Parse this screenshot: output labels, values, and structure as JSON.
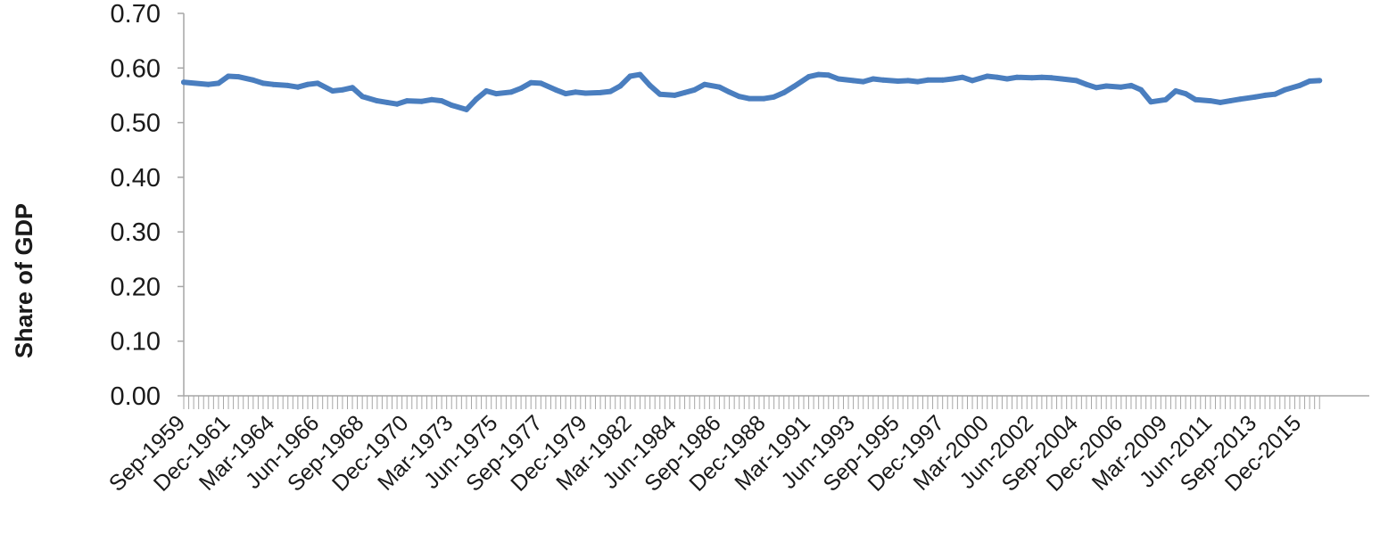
{
  "chart_data": {
    "type": "line",
    "title": "",
    "xlabel": "",
    "ylabel": "Share of GDP",
    "ylim": [
      0,
      0.7
    ],
    "yticks": [
      "0.00",
      "0.10",
      "0.20",
      "0.30",
      "0.40",
      "0.50",
      "0.60",
      "0.70"
    ],
    "xtick_labels": [
      "Sep-1959",
      "Dec-1961",
      "Mar-1964",
      "Jun-1966",
      "Sep-1968",
      "Dec-1970",
      "Mar-1973",
      "Jun-1975",
      "Sep-1977",
      "Dec-1979",
      "Mar-1982",
      "Jun-1984",
      "Sep-1986",
      "Dec-1988",
      "Mar-1991",
      "Jun-1993",
      "Sep-1995",
      "Dec-1997",
      "Mar-2000",
      "Jun-2002",
      "Sep-2004",
      "Dec-2006",
      "Mar-2009",
      "Jun-2011",
      "Sep-2013",
      "Dec-2015"
    ],
    "grid": false,
    "legend": "none",
    "series_color": "#4a7ebf",
    "x": [
      "Sep-1959",
      "Dec-1960",
      "Jun-1961",
      "Dec-1961",
      "Jun-1962",
      "Mar-1963",
      "Sep-1963",
      "Mar-1964",
      "Dec-1964",
      "Jun-1965",
      "Dec-1965",
      "Jun-1966",
      "Mar-1967",
      "Sep-1967",
      "Mar-1968",
      "Sep-1968",
      "Jun-1969",
      "Dec-1969",
      "Jun-1970",
      "Dec-1970",
      "Sep-1971",
      "Mar-1972",
      "Sep-1972",
      "Mar-1973",
      "Dec-1973",
      "Jun-1974",
      "Dec-1974",
      "Jun-1975",
      "Mar-1976",
      "Sep-1976",
      "Mar-1977",
      "Sep-1977",
      "Jun-1978",
      "Dec-1978",
      "Jun-1979",
      "Dec-1979",
      "Sep-1980",
      "Mar-1981",
      "Sep-1981",
      "Mar-1982",
      "Sep-1982",
      "Mar-1983",
      "Sep-1983",
      "Jun-1984",
      "Dec-1984",
      "Jun-1985",
      "Dec-1985",
      "Sep-1986",
      "Mar-1987",
      "Sep-1987",
      "Mar-1988",
      "Dec-1988",
      "Jun-1989",
      "Dec-1989",
      "Jun-1990",
      "Mar-1991",
      "Sep-1991",
      "Mar-1992",
      "Sep-1992",
      "Jun-1993",
      "Dec-1993",
      "Jun-1994",
      "Dec-1994",
      "Sep-1995",
      "Mar-1996",
      "Sep-1996",
      "Mar-1997",
      "Dec-1997",
      "Jun-1998",
      "Dec-1998",
      "Jun-1999",
      "Mar-2000",
      "Sep-2000",
      "Mar-2001",
      "Sep-2001",
      "Jun-2002",
      "Dec-2002",
      "Jun-2003",
      "Dec-2003",
      "Sep-2004",
      "Mar-2005",
      "Sep-2005",
      "Mar-2006",
      "Dec-2006",
      "Jun-2007",
      "Dec-2007",
      "Jun-2008",
      "Mar-2009",
      "Sep-2009",
      "Mar-2010",
      "Sep-2010",
      "Jun-2011",
      "Dec-2011",
      "Jun-2012",
      "Dec-2012",
      "Sep-2013",
      "Mar-2014",
      "Sep-2014",
      "Mar-2015",
      "Dec-2015",
      "Jun-2016",
      "Dec-2016"
    ],
    "series": [
      {
        "values": [
          0.574,
          0.57,
          0.572,
          0.585,
          0.584,
          0.578,
          0.572,
          0.57,
          0.568,
          0.565,
          0.57,
          0.572,
          0.558,
          0.56,
          0.564,
          0.548,
          0.54,
          0.537,
          0.534,
          0.54,
          0.539,
          0.542,
          0.54,
          0.532,
          0.524,
          0.543,
          0.558,
          0.553,
          0.556,
          0.563,
          0.573,
          0.572,
          0.56,
          0.553,
          0.556,
          0.554,
          0.555,
          0.557,
          0.567,
          0.585,
          0.588,
          0.568,
          0.552,
          0.55,
          0.555,
          0.56,
          0.57,
          0.565,
          0.556,
          0.548,
          0.544,
          0.544,
          0.547,
          0.555,
          0.566,
          0.584,
          0.588,
          0.587,
          0.58,
          0.577,
          0.575,
          0.58,
          0.578,
          0.576,
          0.577,
          0.575,
          0.578,
          0.578,
          0.58,
          0.583,
          0.577,
          0.585,
          0.583,
          0.58,
          0.583,
          0.582,
          0.583,
          0.582,
          0.58,
          0.577,
          0.57,
          0.564,
          0.567,
          0.565,
          0.568,
          0.56,
          0.538,
          0.542,
          0.558,
          0.553,
          0.542,
          0.54,
          0.537,
          0.54,
          0.543,
          0.547,
          0.55,
          0.552,
          0.56,
          0.568,
          0.576,
          0.577
        ]
      }
    ]
  }
}
